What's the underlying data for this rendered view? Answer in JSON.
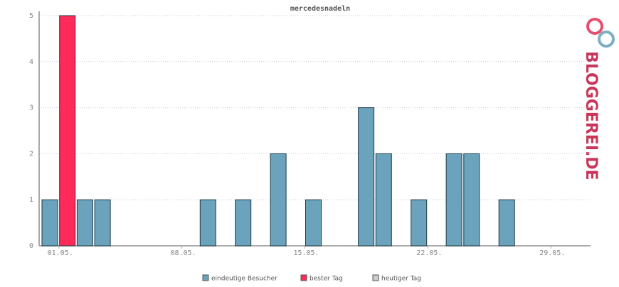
{
  "chart_data": {
    "type": "bar",
    "title": "mercedesnadeln",
    "categories": [
      null,
      "01.05.",
      null,
      null,
      null,
      null,
      null,
      null,
      "08.05.",
      null,
      null,
      null,
      null,
      null,
      null,
      "15.05.",
      null,
      null,
      null,
      null,
      null,
      null,
      "22.05.",
      null,
      null,
      null,
      null,
      null,
      null,
      "29.05.",
      null
    ],
    "series": [
      {
        "name": "eindeutige Besucher",
        "color": "#6aa3bb",
        "values": [
          1,
          null,
          1,
          1,
          0,
          0,
          0,
          0,
          0,
          1,
          0,
          1,
          0,
          2,
          0,
          1,
          0,
          0,
          3,
          2,
          0,
          1,
          0,
          2,
          2,
          0,
          1,
          0,
          0,
          0,
          0
        ]
      },
      {
        "name": "bester Tag",
        "color": "#ff2a5a",
        "values": [
          null,
          5,
          null,
          null,
          null,
          null,
          null,
          null,
          null,
          null,
          null,
          null,
          null,
          null,
          null,
          null,
          null,
          null,
          null,
          null,
          null,
          null,
          null,
          null,
          null,
          null,
          null,
          null,
          null,
          null,
          null
        ]
      },
      {
        "name": "heutiger Tag",
        "color": "#cccccc",
        "values": [
          null,
          null,
          null,
          null,
          null,
          null,
          null,
          null,
          null,
          null,
          null,
          null,
          null,
          null,
          null,
          null,
          null,
          null,
          null,
          null,
          null,
          null,
          null,
          null,
          null,
          null,
          null,
          null,
          null,
          null,
          null
        ]
      }
    ],
    "ylim": [
      0,
      5
    ],
    "yticks": [
      0,
      1,
      2,
      3,
      4,
      5
    ],
    "grid": true
  },
  "logo": "BLOGGEREI.DE"
}
